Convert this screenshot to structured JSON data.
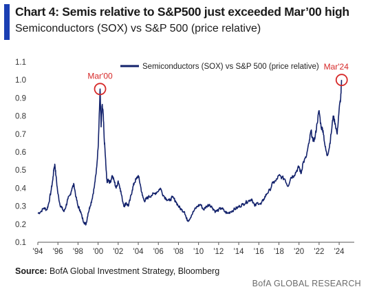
{
  "header": {
    "title": "Chart 4: Semis relative to S&P500 just exceeded Mar’00 high",
    "subtitle": "Semiconductors (SOX) vs S&P 500 (price relative)"
  },
  "footer": {
    "source_label": "Source:",
    "source_text": "BofA Global Investment Strategy, Bloomberg",
    "branding": "BofA GLOBAL RESEARCH"
  },
  "colors": {
    "series": "#12216b",
    "annotation": "#d62828",
    "accent": "#1a3fb3"
  },
  "chart_data": {
    "type": "line",
    "title": "Chart 4: Semis relative to S&P500 just exceeded Mar’00 high",
    "subtitle": "Semiconductors (SOX) vs S&P 500 (price relative)",
    "xlabel": "",
    "ylabel": "",
    "xlim": [
      1994,
      2025.5
    ],
    "ylim": [
      0.1,
      1.1
    ],
    "x_ticks": [
      1994,
      1996,
      1998,
      2000,
      2002,
      2004,
      2006,
      2008,
      2010,
      2012,
      2014,
      2016,
      2018,
      2020,
      2022,
      2024
    ],
    "x_tick_labels": [
      "'94",
      "'96",
      "'98",
      "'00",
      "'02",
      "'04",
      "'06",
      "'08",
      "'10",
      "'12",
      "'14",
      "'16",
      "'18",
      "'20",
      "'22",
      "'24"
    ],
    "y_ticks": [
      0.1,
      0.2,
      0.3,
      0.4,
      0.5,
      0.6,
      0.7,
      0.8,
      0.9,
      1.0,
      1.1
    ],
    "y_tick_labels": [
      "0.1",
      "0.2",
      "0.3",
      "0.4",
      "0.5",
      "0.6",
      "0.7",
      "0.8",
      "0.9",
      "1.0",
      "1.1"
    ],
    "grid": false,
    "legend": {
      "placement": "top-center",
      "entries": [
        "Semiconductors (SOX) vs S&P 500 (price relative)"
      ]
    },
    "series": [
      {
        "name": "Semiconductors (SOX) vs S&P 500 (price relative)",
        "points": [
          [
            1994.0,
            0.26
          ],
          [
            1994.3,
            0.27
          ],
          [
            1994.6,
            0.29
          ],
          [
            1994.9,
            0.28
          ],
          [
            1995.1,
            0.32
          ],
          [
            1995.3,
            0.38
          ],
          [
            1995.5,
            0.45
          ],
          [
            1995.6,
            0.51
          ],
          [
            1995.7,
            0.53
          ],
          [
            1995.8,
            0.47
          ],
          [
            1996.0,
            0.37
          ],
          [
            1996.2,
            0.31
          ],
          [
            1996.4,
            0.29
          ],
          [
            1996.6,
            0.27
          ],
          [
            1996.8,
            0.3
          ],
          [
            1997.0,
            0.34
          ],
          [
            1997.2,
            0.36
          ],
          [
            1997.4,
            0.4
          ],
          [
            1997.6,
            0.42
          ],
          [
            1997.8,
            0.35
          ],
          [
            1998.0,
            0.3
          ],
          [
            1998.2,
            0.28
          ],
          [
            1998.4,
            0.24
          ],
          [
            1998.6,
            0.21
          ],
          [
            1998.8,
            0.2
          ],
          [
            1999.0,
            0.26
          ],
          [
            1999.2,
            0.3
          ],
          [
            1999.4,
            0.34
          ],
          [
            1999.6,
            0.4
          ],
          [
            1999.8,
            0.48
          ],
          [
            2000.0,
            0.62
          ],
          [
            2000.1,
            0.78
          ],
          [
            2000.2,
            0.95
          ],
          [
            2000.3,
            0.74
          ],
          [
            2000.4,
            0.86
          ],
          [
            2000.5,
            0.82
          ],
          [
            2000.6,
            0.68
          ],
          [
            2000.7,
            0.6
          ],
          [
            2000.8,
            0.5
          ],
          [
            2000.9,
            0.43
          ],
          [
            2001.0,
            0.45
          ],
          [
            2001.2,
            0.43
          ],
          [
            2001.4,
            0.47
          ],
          [
            2001.6,
            0.44
          ],
          [
            2001.8,
            0.4
          ],
          [
            2002.0,
            0.44
          ],
          [
            2002.2,
            0.4
          ],
          [
            2002.4,
            0.34
          ],
          [
            2002.6,
            0.3
          ],
          [
            2002.8,
            0.32
          ],
          [
            2003.0,
            0.3
          ],
          [
            2003.2,
            0.34
          ],
          [
            2003.4,
            0.39
          ],
          [
            2003.6,
            0.43
          ],
          [
            2003.8,
            0.45
          ],
          [
            2004.0,
            0.47
          ],
          [
            2004.2,
            0.42
          ],
          [
            2004.4,
            0.36
          ],
          [
            2004.6,
            0.33
          ],
          [
            2004.8,
            0.34
          ],
          [
            2005.0,
            0.35
          ],
          [
            2005.3,
            0.36
          ],
          [
            2005.6,
            0.37
          ],
          [
            2005.9,
            0.38
          ],
          [
            2006.2,
            0.4
          ],
          [
            2006.5,
            0.36
          ],
          [
            2006.8,
            0.34
          ],
          [
            2007.1,
            0.33
          ],
          [
            2007.4,
            0.35
          ],
          [
            2007.7,
            0.33
          ],
          [
            2008.0,
            0.3
          ],
          [
            2008.3,
            0.28
          ],
          [
            2008.6,
            0.27
          ],
          [
            2008.8,
            0.23
          ],
          [
            2009.0,
            0.22
          ],
          [
            2009.3,
            0.25
          ],
          [
            2009.6,
            0.28
          ],
          [
            2009.9,
            0.3
          ],
          [
            2010.2,
            0.31
          ],
          [
            2010.5,
            0.28
          ],
          [
            2010.8,
            0.3
          ],
          [
            2011.1,
            0.31
          ],
          [
            2011.4,
            0.29
          ],
          [
            2011.7,
            0.27
          ],
          [
            2012.0,
            0.28
          ],
          [
            2012.3,
            0.29
          ],
          [
            2012.6,
            0.27
          ],
          [
            2012.9,
            0.26
          ],
          [
            2013.2,
            0.27
          ],
          [
            2013.5,
            0.28
          ],
          [
            2013.8,
            0.29
          ],
          [
            2014.1,
            0.3
          ],
          [
            2014.4,
            0.31
          ],
          [
            2014.7,
            0.32
          ],
          [
            2015.0,
            0.33
          ],
          [
            2015.3,
            0.34
          ],
          [
            2015.6,
            0.3
          ],
          [
            2015.9,
            0.32
          ],
          [
            2016.2,
            0.31
          ],
          [
            2016.5,
            0.34
          ],
          [
            2016.8,
            0.37
          ],
          [
            2017.1,
            0.39
          ],
          [
            2017.4,
            0.43
          ],
          [
            2017.7,
            0.44
          ],
          [
            2018.0,
            0.47
          ],
          [
            2018.3,
            0.46
          ],
          [
            2018.6,
            0.45
          ],
          [
            2018.9,
            0.41
          ],
          [
            2019.2,
            0.46
          ],
          [
            2019.5,
            0.47
          ],
          [
            2019.8,
            0.5
          ],
          [
            2020.0,
            0.52
          ],
          [
            2020.2,
            0.48
          ],
          [
            2020.4,
            0.54
          ],
          [
            2020.7,
            0.57
          ],
          [
            2021.0,
            0.65
          ],
          [
            2021.2,
            0.72
          ],
          [
            2021.4,
            0.66
          ],
          [
            2021.6,
            0.68
          ],
          [
            2021.8,
            0.76
          ],
          [
            2022.0,
            0.83
          ],
          [
            2022.2,
            0.74
          ],
          [
            2022.4,
            0.72
          ],
          [
            2022.6,
            0.63
          ],
          [
            2022.8,
            0.58
          ],
          [
            2023.0,
            0.62
          ],
          [
            2023.2,
            0.7
          ],
          [
            2023.4,
            0.8
          ],
          [
            2023.6,
            0.76
          ],
          [
            2023.8,
            0.7
          ],
          [
            2024.0,
            0.84
          ],
          [
            2024.15,
            0.9
          ],
          [
            2024.25,
            1.0
          ]
        ]
      }
    ],
    "annotations": [
      {
        "label": "Mar'00",
        "x": 2000.2,
        "y": 0.95
      },
      {
        "label": "Mar'24",
        "x": 2024.25,
        "y": 1.0
      }
    ]
  }
}
